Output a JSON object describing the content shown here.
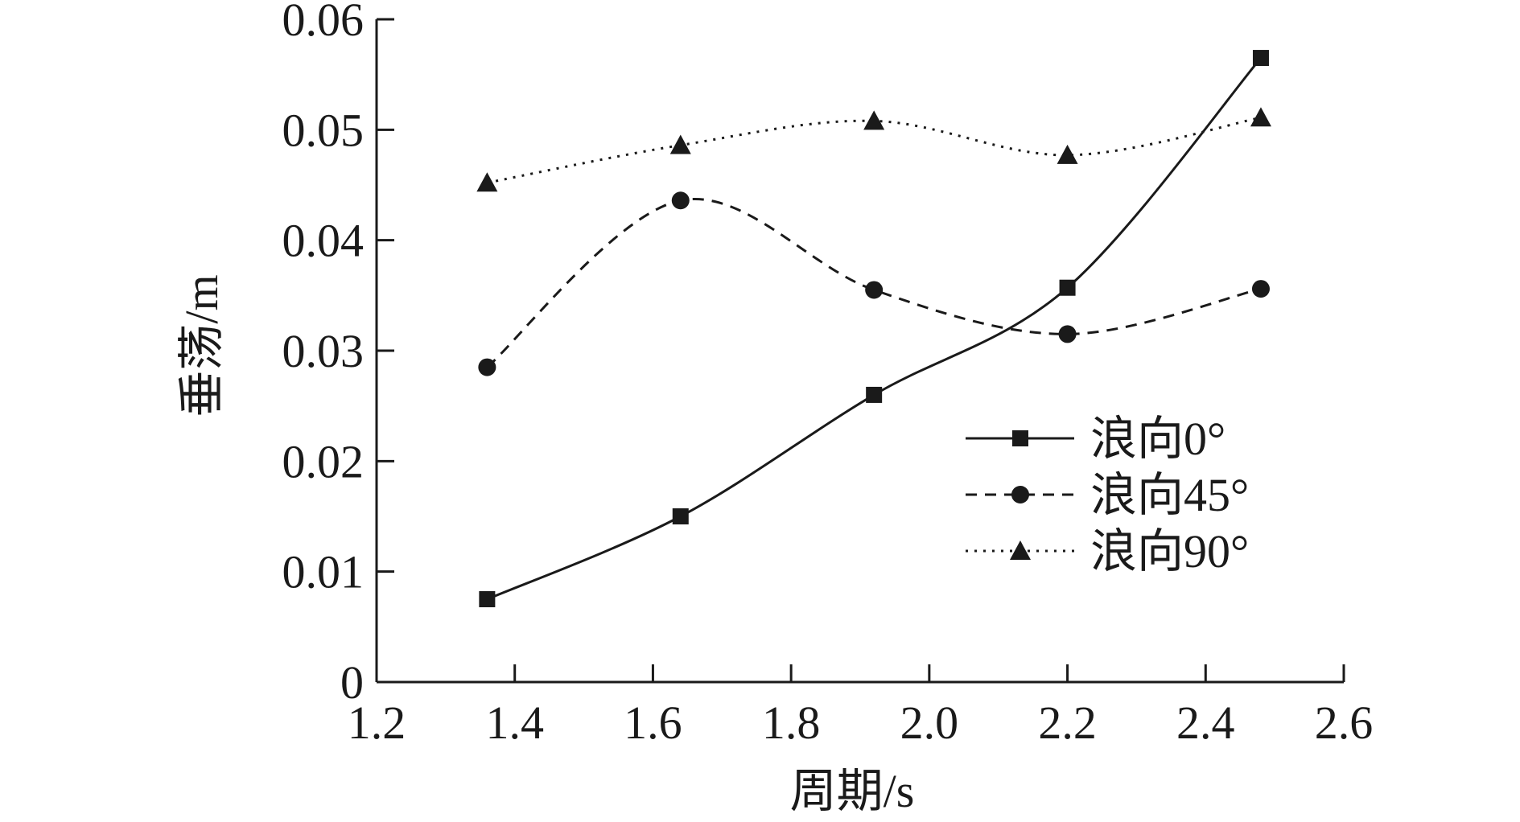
{
  "chart_data": {
    "type": "line",
    "xlabel": "周期/s",
    "ylabel": "垂荡/m",
    "xlim": [
      1.2,
      2.6
    ],
    "ylim": [
      0,
      0.06
    ],
    "xticks": [
      "1.2",
      "1.4",
      "1.6",
      "1.8",
      "2.0",
      "2.2",
      "2.4",
      "2.6"
    ],
    "yticks": [
      "0",
      "0.01",
      "0.02",
      "0.03",
      "0.04",
      "0.05",
      "0.06"
    ],
    "x": [
      1.36,
      1.64,
      1.92,
      2.2,
      2.48
    ],
    "grid": false,
    "legend_position": "center-right",
    "series": [
      {
        "name": "浪向0°",
        "marker": "square",
        "line_style": "solid",
        "color": "#1a1a1a",
        "values": [
          0.0075,
          0.015,
          0.026,
          0.0357,
          0.0565
        ]
      },
      {
        "name": "浪向45°",
        "marker": "circle",
        "line_style": "dashed",
        "color": "#1a1a1a",
        "values": [
          0.0285,
          0.0436,
          0.0355,
          0.0315,
          0.0356
        ]
      },
      {
        "name": "浪向90°",
        "marker": "triangle",
        "line_style": "dotted",
        "color": "#1a1a1a",
        "values": [
          0.0452,
          0.0486,
          0.0508,
          0.0477,
          0.0511
        ]
      }
    ]
  }
}
